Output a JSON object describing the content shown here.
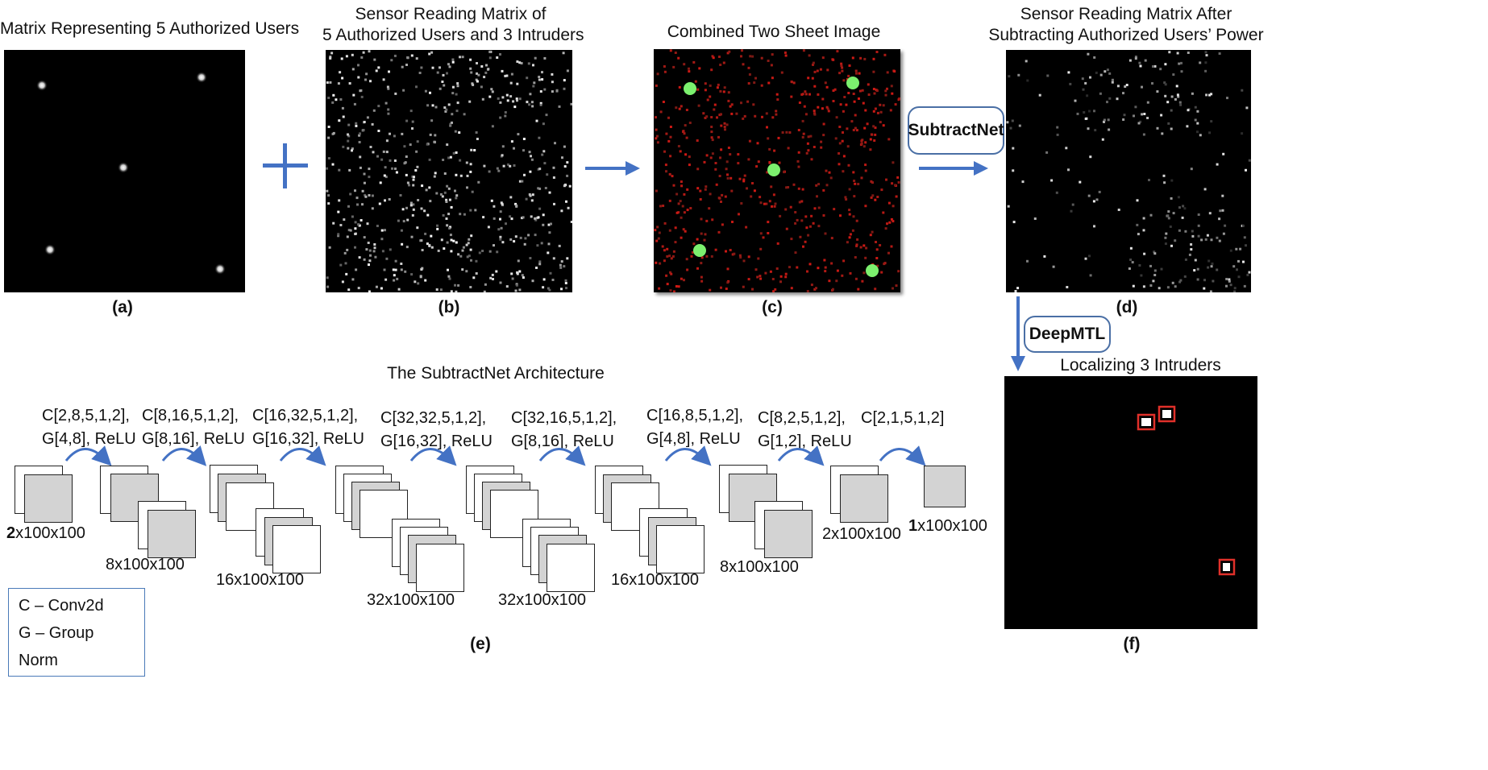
{
  "panels": {
    "a": {
      "title": "Matrix Representing 5 Authorized Users",
      "caption": "(a)"
    },
    "b": {
      "title_line1": "Sensor Reading Matrix of",
      "title_line2": "5 Authorized Users and 3 Intruders",
      "caption": "(b)"
    },
    "c": {
      "title": "Combined Two Sheet Image",
      "caption": "(c)"
    },
    "d": {
      "title_line1": "Sensor Reading Matrix After",
      "title_line2": "Subtracting Authorized Users’ Power",
      "caption": "(d)"
    },
    "e": {
      "title": "The SubtractNet Architecture",
      "caption": "(e)"
    },
    "f": {
      "title": "Localizing 3 Intruders",
      "caption": "(f)"
    }
  },
  "operators": {
    "plus": "+"
  },
  "networks": {
    "subtractnet": "SubtractNet",
    "deepmtl": "DeepMTL"
  },
  "architecture": {
    "ops": [
      {
        "line1": "C[2,8,5,1,2],",
        "line2": "G[4,8], ReLU"
      },
      {
        "line1": "C[8,16,5,1,2],",
        "line2": "G[8,16], ReLU"
      },
      {
        "line1": "C[16,32,5,1,2],",
        "line2": "G[16,32], ReLU"
      },
      {
        "line1": "C[32,32,5,1,2],",
        "line2": "G[16,32], ReLU"
      },
      {
        "line1": "C[32,16,5,1,2],",
        "line2": "G[8,16], ReLU"
      },
      {
        "line1": "C[16,8,5,1,2],",
        "line2": "G[4,8], ReLU"
      },
      {
        "line1": "C[8,2,5,1,2],",
        "line2": "G[1,2], ReLU"
      },
      {
        "line1": "C[2,1,5,1,2]",
        "line2": ""
      }
    ],
    "shapes": [
      {
        "bold": "2",
        "rest": "x100x100"
      },
      {
        "bold": "",
        "rest": "8x100x100"
      },
      {
        "bold": "",
        "rest": "16x100x100"
      },
      {
        "bold": "",
        "rest": "32x100x100"
      },
      {
        "bold": "",
        "rest": "32x100x100"
      },
      {
        "bold": "",
        "rest": "16x100x100"
      },
      {
        "bold": "",
        "rest": "8x100x100"
      },
      {
        "bold": "",
        "rest": "2x100x100"
      },
      {
        "bold": "1",
        "rest": "x100x100"
      }
    ]
  },
  "legend": {
    "conv": "C – Conv2d",
    "norm": "G – Group Norm"
  },
  "colors": {
    "accent": "#4472c4",
    "sensor_red": "#c0281e",
    "user_green": "#7cf06e",
    "box_red": "#e0302a"
  }
}
